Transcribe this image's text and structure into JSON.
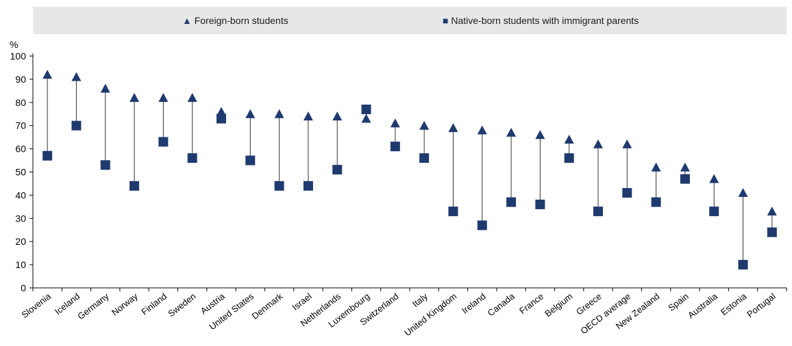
{
  "chart_data": {
    "type": "scatter",
    "ylabel": "%",
    "ylim": [
      0,
      100
    ],
    "yticks": [
      0,
      10,
      20,
      30,
      40,
      50,
      60,
      70,
      80,
      90,
      100
    ],
    "grid": false,
    "legend_position": "top",
    "categories": [
      "Slovenia",
      "Iceland",
      "Germany",
      "Norway",
      "Finland",
      "Sweden",
      "Austria",
      "United States",
      "Denmark",
      "Israel",
      "Netherlands",
      "Luxembourg",
      "Switzerland",
      "Italy",
      "United Kingdom",
      "Ireland",
      "Canada",
      "France",
      "Belgium",
      "Greece",
      "OECD average",
      "New Zealand",
      "Spain",
      "Australia",
      "Estonia",
      "Portugal"
    ],
    "series": [
      {
        "name": "Foreign-born students",
        "marker": "triangle",
        "color": "#1f3a6e",
        "values": [
          92,
          91,
          86,
          82,
          82,
          82,
          76,
          75,
          75,
          74,
          74,
          73,
          71,
          70,
          69,
          68,
          67,
          66,
          64,
          62,
          62,
          52,
          52,
          47,
          41,
          33
        ]
      },
      {
        "name": "Native-born students with immigrant parents",
        "marker": "square",
        "color": "#1f3a6e",
        "values": [
          57,
          70,
          53,
          44,
          63,
          56,
          73,
          55,
          44,
          44,
          51,
          77,
          61,
          56,
          33,
          27,
          37,
          36,
          56,
          33,
          41,
          37,
          47,
          33,
          10,
          24
        ]
      }
    ]
  }
}
